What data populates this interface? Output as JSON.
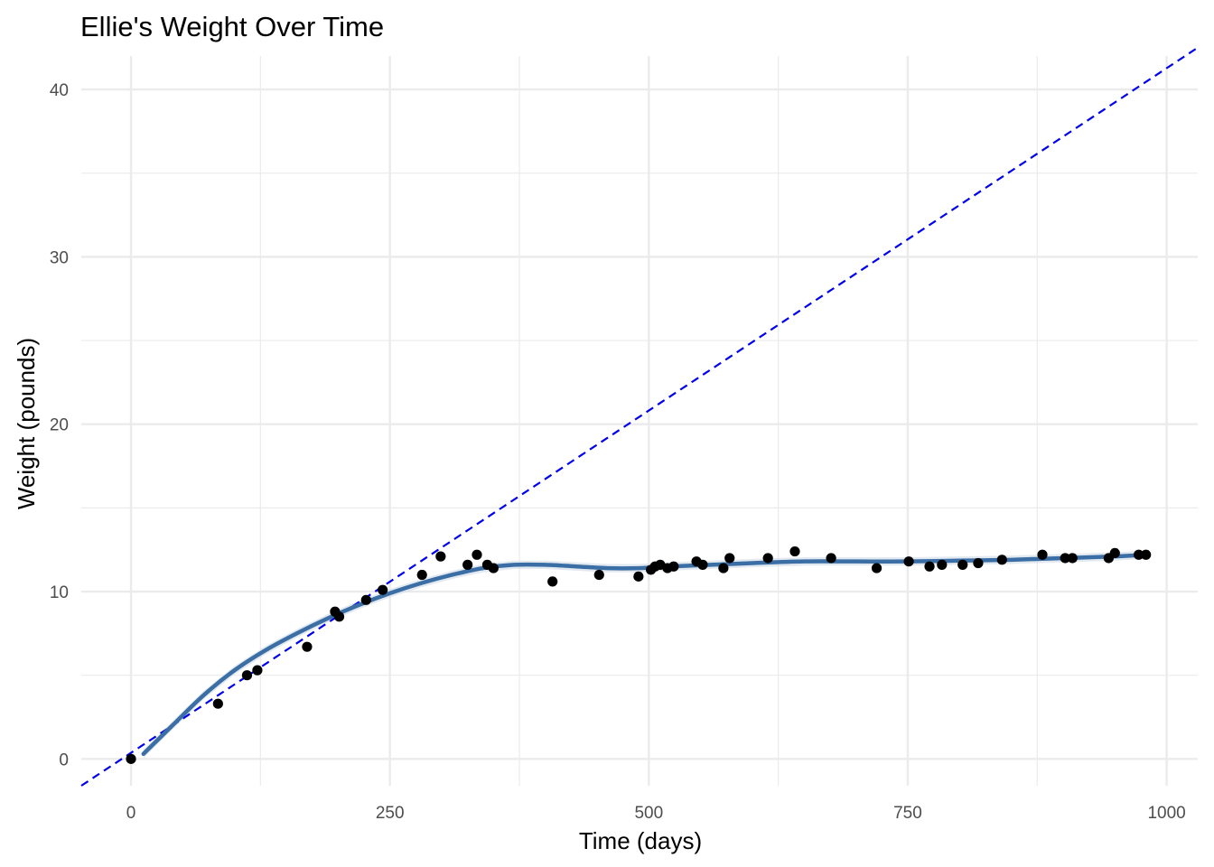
{
  "chart_data": {
    "type": "scatter",
    "title": "Ellie's Weight Over Time",
    "xlabel": "Time (days)",
    "ylabel": "Weight (pounds)",
    "xlim": [
      -48,
      1030
    ],
    "ylim": [
      -1.6,
      42
    ],
    "x_ticks": [
      0,
      250,
      500,
      750,
      1000
    ],
    "y_ticks": [
      0,
      10,
      20,
      30,
      40
    ],
    "grid": true,
    "legend": "none",
    "colors": {
      "points": "#000000",
      "smooth": "#3a6ea5",
      "ribbon": "#d5e0ea",
      "reference": "#0000ee",
      "grid": "#ebebeb"
    },
    "series": [
      {
        "kind": "points",
        "x": [
          0,
          84,
          112,
          122,
          170,
          197,
          201,
          227,
          243,
          281,
          299,
          325,
          334,
          344,
          350,
          407,
          452,
          490,
          502,
          506,
          511,
          518,
          524,
          546,
          552,
          572,
          578,
          615,
          641,
          676,
          720,
          751,
          771,
          783,
          803,
          818,
          841,
          880,
          902,
          909,
          944,
          950,
          973,
          980
        ],
        "y": [
          0,
          3.3,
          5.0,
          5.3,
          6.7,
          8.8,
          8.5,
          9.5,
          10.1,
          11.0,
          12.1,
          11.6,
          12.2,
          11.6,
          11.4,
          10.6,
          11.0,
          10.9,
          11.3,
          11.5,
          11.6,
          11.4,
          11.5,
          11.8,
          11.6,
          11.4,
          12.0,
          12.0,
          12.4,
          12.0,
          11.4,
          11.8,
          11.5,
          11.6,
          11.6,
          11.7,
          11.9,
          12.2,
          12.0,
          12.0,
          12.0,
          12.3,
          12.2,
          12.2
        ]
      },
      {
        "kind": "smooth",
        "x": [
          12,
          40,
          70,
          100,
          130,
          160,
          190,
          220,
          250,
          280,
          310,
          340,
          370,
          400,
          430,
          460,
          490,
          520,
          560,
          600,
          650,
          700,
          750,
          800,
          850,
          900,
          950,
          980
        ],
        "y": [
          0.3,
          2.0,
          3.8,
          5.3,
          6.5,
          7.5,
          8.4,
          9.2,
          9.9,
          10.5,
          11.0,
          11.4,
          11.6,
          11.6,
          11.5,
          11.4,
          11.4,
          11.5,
          11.6,
          11.7,
          11.8,
          11.8,
          11.8,
          11.85,
          11.9,
          12.0,
          12.1,
          12.2
        ],
        "band": 0.25
      },
      {
        "kind": "reference",
        "x": [
          -48,
          1030
        ],
        "y": [
          -1.6,
          42.5
        ]
      }
    ]
  }
}
